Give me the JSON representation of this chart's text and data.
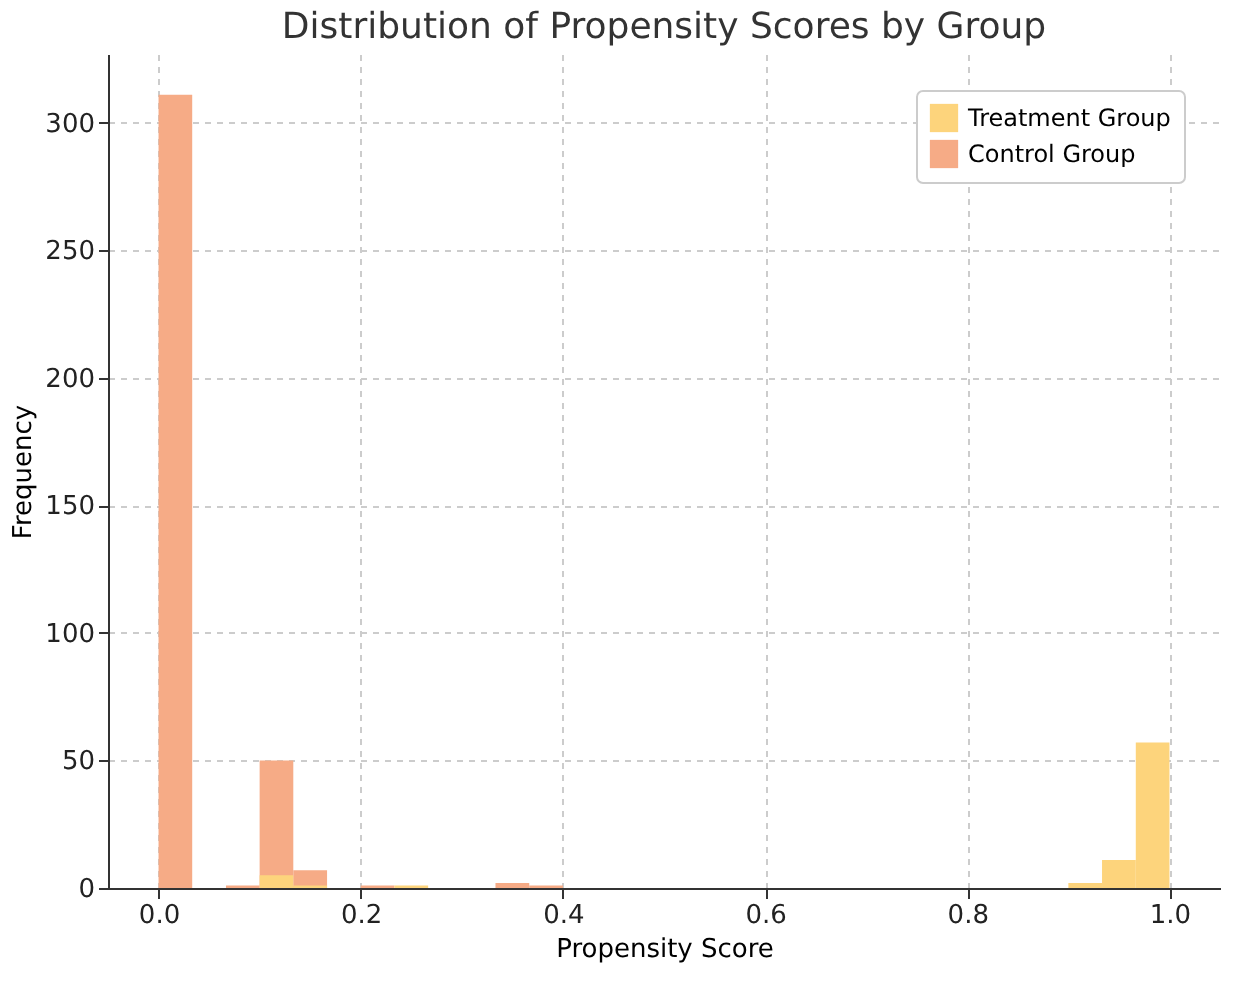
{
  "chart_data": {
    "type": "histogram",
    "title": "Distribution of Propensity Scores by Group",
    "xlabel": "Propensity Score",
    "ylabel": "Frequency",
    "bins": [
      0,
      0.0333,
      0.0667,
      0.1,
      0.1333,
      0.1667,
      0.2,
      0.2333,
      0.2667,
      0.3,
      0.3333,
      0.3667,
      0.4,
      0.4333,
      0.4667,
      0.5,
      0.5333,
      0.5667,
      0.6,
      0.6333,
      0.6667,
      0.7,
      0.7333,
      0.7667,
      0.8,
      0.8333,
      0.8667,
      0.9,
      0.9333,
      0.9667,
      1.0
    ],
    "series": [
      {
        "name": "Treatment Group",
        "color": "#fdd47c",
        "values": [
          0,
          0,
          0,
          5,
          1,
          0,
          0,
          1,
          0,
          0,
          0,
          0,
          0,
          0,
          0,
          0,
          0,
          0,
          0,
          0,
          0,
          0,
          0,
          0,
          0,
          0,
          0,
          2,
          11,
          57
        ]
      },
      {
        "name": "Control Group",
        "color": "#f6ab86",
        "values": [
          311,
          0,
          1,
          50,
          7,
          0,
          1,
          0,
          0,
          0,
          2,
          1,
          0,
          0,
          0,
          0,
          0,
          0,
          0,
          0,
          0,
          0,
          0,
          0,
          0,
          0,
          0,
          0,
          0,
          0
        ]
      }
    ],
    "xlim": [
      -0.05,
      1.05
    ],
    "ylim": [
      0,
      327
    ],
    "xticks": [
      {
        "value": 0,
        "label": "0.0"
      },
      {
        "value": 0.2,
        "label": "0.2"
      },
      {
        "value": 0.4,
        "label": "0.4"
      },
      {
        "value": 0.6,
        "label": "0.6"
      },
      {
        "value": 0.8,
        "label": "0.8"
      },
      {
        "value": 1.0,
        "label": "1.0"
      }
    ],
    "yticks": [
      0,
      50,
      100,
      150,
      200,
      250,
      300
    ],
    "grid": true,
    "legend": "top right"
  }
}
